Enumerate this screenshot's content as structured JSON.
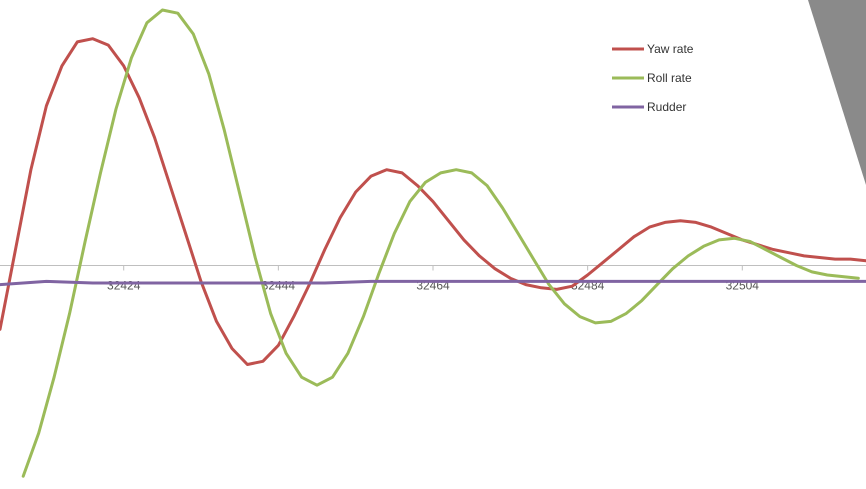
{
  "chart_data": {
    "type": "line",
    "title": "",
    "xlabel": "",
    "ylabel": "",
    "xlim": [
      32408,
      32520
    ],
    "ylim": [
      -1.4,
      1.6
    ],
    "x_ticks": [
      32424,
      32444,
      32464,
      32484,
      32504
    ],
    "grid": false,
    "legend_position": "top-right",
    "series": [
      {
        "name": "Yaw rate",
        "color": "#c0504d",
        "points": [
          [
            32408,
            -0.4
          ],
          [
            32410,
            0.1
          ],
          [
            32412,
            0.6
          ],
          [
            32414,
            1.0
          ],
          [
            32416,
            1.25
          ],
          [
            32418,
            1.4
          ],
          [
            32420,
            1.42
          ],
          [
            32422,
            1.38
          ],
          [
            32424,
            1.25
          ],
          [
            32426,
            1.05
          ],
          [
            32428,
            0.8
          ],
          [
            32430,
            0.5
          ],
          [
            32432,
            0.2
          ],
          [
            32434,
            -0.1
          ],
          [
            32436,
            -0.35
          ],
          [
            32438,
            -0.52
          ],
          [
            32440,
            -0.62
          ],
          [
            32442,
            -0.6
          ],
          [
            32444,
            -0.5
          ],
          [
            32446,
            -0.32
          ],
          [
            32448,
            -0.12
          ],
          [
            32450,
            0.1
          ],
          [
            32452,
            0.3
          ],
          [
            32454,
            0.46
          ],
          [
            32456,
            0.56
          ],
          [
            32458,
            0.6
          ],
          [
            32460,
            0.58
          ],
          [
            32462,
            0.5
          ],
          [
            32464,
            0.4
          ],
          [
            32466,
            0.28
          ],
          [
            32468,
            0.16
          ],
          [
            32470,
            0.06
          ],
          [
            32472,
            -0.02
          ],
          [
            32474,
            -0.08
          ],
          [
            32476,
            -0.12
          ],
          [
            32478,
            -0.14
          ],
          [
            32480,
            -0.15
          ],
          [
            32482,
            -0.13
          ],
          [
            32484,
            -0.06
          ],
          [
            32486,
            0.02
          ],
          [
            32488,
            0.1
          ],
          [
            32490,
            0.18
          ],
          [
            32492,
            0.24
          ],
          [
            32494,
            0.27
          ],
          [
            32496,
            0.28
          ],
          [
            32498,
            0.27
          ],
          [
            32500,
            0.24
          ],
          [
            32502,
            0.2
          ],
          [
            32504,
            0.16
          ],
          [
            32506,
            0.13
          ],
          [
            32508,
            0.1
          ],
          [
            32510,
            0.08
          ],
          [
            32512,
            0.06
          ],
          [
            32514,
            0.05
          ],
          [
            32516,
            0.04
          ],
          [
            32518,
            0.04
          ],
          [
            32520,
            0.03
          ]
        ]
      },
      {
        "name": "Roll rate",
        "color": "#9bbb59",
        "points": [
          [
            32411,
            -1.32
          ],
          [
            32413,
            -1.05
          ],
          [
            32415,
            -0.7
          ],
          [
            32417,
            -0.3
          ],
          [
            32419,
            0.15
          ],
          [
            32421,
            0.58
          ],
          [
            32423,
            0.98
          ],
          [
            32425,
            1.3
          ],
          [
            32427,
            1.52
          ],
          [
            32429,
            1.6
          ],
          [
            32431,
            1.58
          ],
          [
            32433,
            1.45
          ],
          [
            32435,
            1.2
          ],
          [
            32437,
            0.85
          ],
          [
            32439,
            0.45
          ],
          [
            32441,
            0.05
          ],
          [
            32443,
            -0.3
          ],
          [
            32445,
            -0.55
          ],
          [
            32447,
            -0.7
          ],
          [
            32449,
            -0.75
          ],
          [
            32451,
            -0.7
          ],
          [
            32453,
            -0.55
          ],
          [
            32455,
            -0.32
          ],
          [
            32457,
            -0.05
          ],
          [
            32459,
            0.2
          ],
          [
            32461,
            0.4
          ],
          [
            32463,
            0.52
          ],
          [
            32465,
            0.58
          ],
          [
            32467,
            0.6
          ],
          [
            32469,
            0.58
          ],
          [
            32471,
            0.5
          ],
          [
            32473,
            0.36
          ],
          [
            32475,
            0.2
          ],
          [
            32477,
            0.04
          ],
          [
            32479,
            -0.12
          ],
          [
            32481,
            -0.24
          ],
          [
            32483,
            -0.32
          ],
          [
            32485,
            -0.36
          ],
          [
            32487,
            -0.35
          ],
          [
            32489,
            -0.3
          ],
          [
            32491,
            -0.22
          ],
          [
            32493,
            -0.12
          ],
          [
            32495,
            -0.02
          ],
          [
            32497,
            0.06
          ],
          [
            32499,
            0.12
          ],
          [
            32501,
            0.16
          ],
          [
            32503,
            0.17
          ],
          [
            32505,
            0.15
          ],
          [
            32507,
            0.1
          ],
          [
            32509,
            0.05
          ],
          [
            32511,
            0.0
          ],
          [
            32513,
            -0.04
          ],
          [
            32515,
            -0.06
          ],
          [
            32517,
            -0.07
          ],
          [
            32519,
            -0.08
          ]
        ]
      },
      {
        "name": "Rudder",
        "color": "#8064a2",
        "points": [
          [
            32408,
            -0.12
          ],
          [
            32414,
            -0.1
          ],
          [
            32420,
            -0.11
          ],
          [
            32426,
            -0.11
          ],
          [
            32432,
            -0.11
          ],
          [
            32438,
            -0.11
          ],
          [
            32444,
            -0.11
          ],
          [
            32450,
            -0.11
          ],
          [
            32456,
            -0.1
          ],
          [
            32462,
            -0.1
          ],
          [
            32468,
            -0.1
          ],
          [
            32474,
            -0.1
          ],
          [
            32480,
            -0.1
          ],
          [
            32486,
            -0.1
          ],
          [
            32492,
            -0.1
          ],
          [
            32498,
            -0.1
          ],
          [
            32504,
            -0.1
          ],
          [
            32510,
            -0.1
          ],
          [
            32516,
            -0.1
          ],
          [
            32520,
            -0.1
          ]
        ]
      }
    ]
  }
}
